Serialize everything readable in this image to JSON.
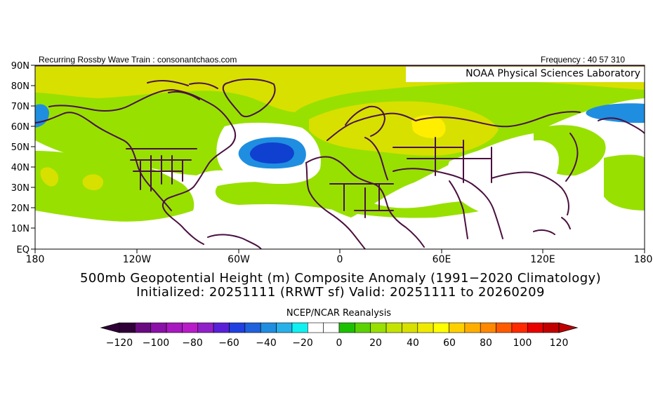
{
  "header": {
    "left": "Recurring Rossby Wave Train : consonantchaos.com",
    "right": "Frequency : 40 57 310",
    "lab": "NOAA Physical Sciences Laboratory"
  },
  "map": {
    "lat_labels": [
      "90N",
      "80N",
      "70N",
      "60N",
      "50N",
      "40N",
      "30N",
      "20N",
      "10N",
      "EQ"
    ],
    "lon_labels": [
      "180",
      "120W",
      "60W",
      "0",
      "60E",
      "120E",
      "180"
    ],
    "colors": {
      "coast": "#4a1040",
      "green_light": "#98e000",
      "yellow_green": "#d8e000",
      "yellow": "#ffee00",
      "blue": "#1f8ee0",
      "blue_dark": "#1040d0"
    }
  },
  "titles": {
    "line1": "500mb Geopotential Height (m) Composite Anomaly (1991−2020 Climatology)",
    "line2": "Initialized: 20251111 (RRWT sf) Valid: 20251111 to 20260209"
  },
  "colorbar": {
    "title": "NCEP/NCAR Reanalysis",
    "tick_labels": [
      "−120",
      "−100",
      "−80",
      "−60",
      "−40",
      "−20",
      "0",
      "20",
      "40",
      "60",
      "80",
      "100",
      "120"
    ],
    "colors": [
      "#300038",
      "#6a0a80",
      "#8a10a8",
      "#a818c0",
      "#b81cc8",
      "#9020c8",
      "#5a20d8",
      "#2040e0",
      "#1f62dc",
      "#1f8ee0",
      "#28b0e8",
      "#10f0f0",
      "#ffffff",
      "#ffffff",
      "#1cc000",
      "#5cd200",
      "#98e000",
      "#c4e400",
      "#d8e000",
      "#f0ea00",
      "#ffff00",
      "#ffd000",
      "#ffae00",
      "#ff8800",
      "#ff5a00",
      "#ff2a00",
      "#e80000",
      "#c00000"
    ]
  }
}
